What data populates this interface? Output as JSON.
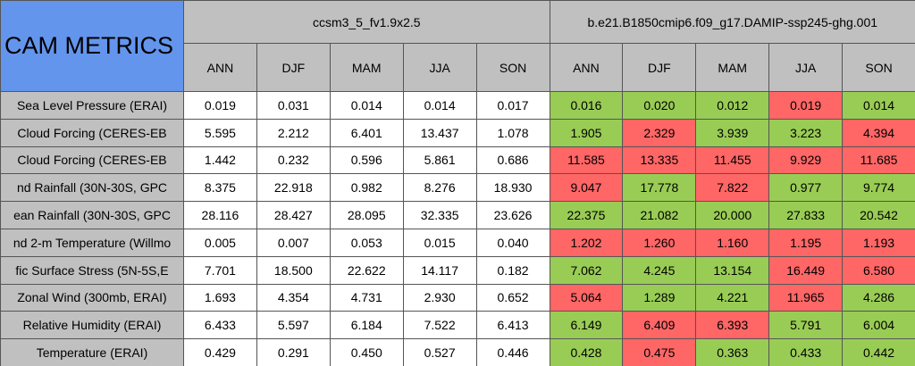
{
  "title": "CAM METRICS",
  "groups": [
    {
      "name": "ccsm3_5_fv1.9x2.5",
      "seasons": [
        "ANN",
        "DJF",
        "MAM",
        "JJA",
        "SON"
      ]
    },
    {
      "name": "b.e21.B1850cmip6.f09_g17.DAMIP-ssp245-ghg.001",
      "seasons": [
        "ANN",
        "DJF",
        "MAM",
        "JJA",
        "SON"
      ]
    }
  ],
  "rows": [
    {
      "label": "Sea Level Pressure (ERAI)",
      "values": [
        "0.019",
        "0.031",
        "0.014",
        "0.014",
        "0.017",
        "0.016",
        "0.020",
        "0.012",
        "0.019",
        "0.014"
      ],
      "colors": [
        "#99cc55",
        "#99cc55",
        "#99cc55",
        "#ff6666",
        "#99cc55"
      ]
    },
    {
      "label": "Cloud Forcing (CERES-EB",
      "values": [
        "5.595",
        "2.212",
        "6.401",
        "13.437",
        "1.078",
        "1.905",
        "2.329",
        "3.939",
        "3.223",
        "4.394"
      ],
      "colors": [
        "#99cc55",
        "#ff6666",
        "#99cc55",
        "#99cc55",
        "#ff6666"
      ]
    },
    {
      "label": "Cloud Forcing (CERES-EB",
      "values": [
        "1.442",
        "0.232",
        "0.596",
        "5.861",
        "0.686",
        "11.585",
        "13.335",
        "11.455",
        "9.929",
        "11.685"
      ],
      "colors": [
        "#ff6666",
        "#ff6666",
        "#ff6666",
        "#ff6666",
        "#ff6666"
      ]
    },
    {
      "label": "nd Rainfall (30N-30S, GPC",
      "values": [
        "8.375",
        "22.918",
        "0.982",
        "8.276",
        "18.930",
        "9.047",
        "17.778",
        "7.822",
        "0.977",
        "9.774"
      ],
      "colors": [
        "#ff6666",
        "#99cc55",
        "#ff6666",
        "#99cc55",
        "#99cc55"
      ]
    },
    {
      "label": "ean Rainfall (30N-30S, GPC",
      "values": [
        "28.116",
        "28.427",
        "28.095",
        "32.335",
        "23.626",
        "22.375",
        "21.082",
        "20.000",
        "27.833",
        "20.542"
      ],
      "colors": [
        "#99cc55",
        "#99cc55",
        "#99cc55",
        "#99cc55",
        "#99cc55"
      ]
    },
    {
      "label": "nd 2-m Temperature (Willmo",
      "values": [
        "0.005",
        "0.007",
        "0.053",
        "0.015",
        "0.040",
        "1.202",
        "1.260",
        "1.160",
        "1.195",
        "1.193"
      ],
      "colors": [
        "#ff6666",
        "#ff6666",
        "#ff6666",
        "#ff6666",
        "#ff6666"
      ]
    },
    {
      "label": "fic Surface Stress (5N-5S,E",
      "values": [
        "7.701",
        "18.500",
        "22.622",
        "14.117",
        "0.182",
        "7.062",
        "4.245",
        "13.154",
        "16.449",
        "6.580"
      ],
      "colors": [
        "#99cc55",
        "#99cc55",
        "#99cc55",
        "#ff6666",
        "#ff6666"
      ]
    },
    {
      "label": "Zonal Wind (300mb, ERAI)",
      "values": [
        "1.693",
        "4.354",
        "4.731",
        "2.930",
        "0.652",
        "5.064",
        "1.289",
        "4.221",
        "11.965",
        "4.286"
      ],
      "colors": [
        "#ff6666",
        "#99cc55",
        "#99cc55",
        "#ff6666",
        "#99cc55"
      ]
    },
    {
      "label": "Relative Humidity (ERAI)",
      "values": [
        "6.433",
        "5.597",
        "6.184",
        "7.522",
        "6.413",
        "6.149",
        "6.409",
        "6.393",
        "5.791",
        "6.004"
      ],
      "colors": [
        "#99cc55",
        "#ff6666",
        "#ff6666",
        "#99cc55",
        "#99cc55"
      ]
    },
    {
      "label": "Temperature (ERAI)",
      "values": [
        "0.429",
        "0.291",
        "0.450",
        "0.527",
        "0.446",
        "0.428",
        "0.475",
        "0.363",
        "0.433",
        "0.442"
      ],
      "colors": [
        "#99cc55",
        "#ff6666",
        "#99cc55",
        "#99cc55",
        "#99cc55"
      ]
    }
  ]
}
